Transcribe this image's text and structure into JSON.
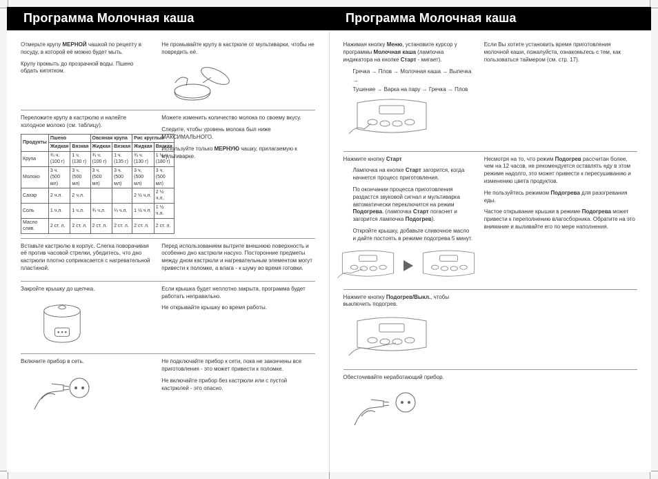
{
  "header": {
    "title_left": "Программа Молочная каша",
    "title_right": "Программа Молочная каша"
  },
  "left": {
    "r1": {
      "l1": "Отмерьте крупу",
      "l1b": "МЕРНОЙ",
      "l1c": "чашкой по рецепту в посуду, в которой её можно будет мыть.",
      "l2": "Крупу промыть до прозрачной воды. Пшено обдать кипятком.",
      "r1": "Не промывайте крупу в кастрюле от мультиварки, чтобы не повредить её."
    },
    "r2": {
      "l1": "Переложите крупу в кастрюлю и налейте холодное молоко (см. таблицу).",
      "r1": "Можете изменить количество молока по своему вкусу.",
      "r2": "Следите, чтобы уровень молока был ниже МАКСИМАЛЬНОГО.",
      "r3a": "Используйте только",
      "r3b": "МЕРНУЮ",
      "r3c": "чашку, прилагаемую к мультиварке."
    },
    "table": {
      "hdr_prod": "Продукты",
      "g1": "Пшено",
      "g2": "Овсяная крупа",
      "g3": "Рис круглый",
      "sub_a": "Жидкая",
      "sub_b": "Вязкая",
      "rows": [
        [
          "Крупа",
          "¾ ч. (100 г)",
          "1 ч. (130 г)",
          "¾ ч. (100 г)",
          "1 ч. (135 г)",
          "¾ ч. (130 г)",
          "1 ½ ч. (180 г)"
        ],
        [
          "Молоко",
          "3 ч. (500 мл)",
          "3 ч. (500 мл)",
          "3 ч. (500 мл)",
          "3 ч. (500 мл)",
          "3 ч. (500 мл)",
          "3 ч. (500 мл)"
        ],
        [
          "Сахар",
          "2 ч.л.",
          "2 ч.л.",
          "",
          "",
          "2 ½ ч.л.",
          "2 ½ ч.л."
        ],
        [
          "Соль",
          "1 ч.л.",
          "1 ч.л.",
          "¾ ч.л.",
          "¼ ч.л.",
          "1 ½ ч.л.",
          "1 ½ ч.л."
        ],
        [
          "Масло слив.",
          "2 ст. л.",
          "2 ст. л.",
          "2 ст. л.",
          "2 ст. л.",
          "2 ст. л.",
          "2 ст. л."
        ]
      ]
    },
    "r3": {
      "l1": "Вставьте кастрюлю в корпус. Слегка поворачивая её против часовой стрелки, убедитесь, что дно кастрюли плотно соприкасается с нагревательной пластиной.",
      "r1": "Перед использованием вытрите внешнюю поверхность и особенно дно кастрюли насухо. Посторонние предметы между дном кастрюли и нагревательным элементом могут привести к поломке, а влага - к шуму во время готовки."
    },
    "r4": {
      "l1": "Закройте крышку до щелчка.",
      "r1": "Если крышка будет неплотно закрыта, программа будет работать неправильно.",
      "r2": "Не открывайте крышку во время работы."
    },
    "r5": {
      "l1": "Включите прибор в сеть.",
      "r1": "Не подключайте прибор к сети, пока не закончены все приготовления - это может привести к поломке.",
      "r2": "Не включайте прибор без кастрюли или с пустой кастрюлей - это опасно."
    }
  },
  "right": {
    "r1": {
      "l1a": "Нажимая кнопку",
      "l1b": "Меню",
      "l1c": ", установите курсор у программы",
      "l1d": "Молочная каша",
      "l1e": "(лампочка индикатора на кнопке",
      "l1f": "Старт",
      "l1g": "- мигает).",
      "flow1": "Гречка → Плов → Молочная каша → Выпечка →",
      "flow2": "Тушение → Варка на пару → Гречка → Плов",
      "r1": "Если Вы хотите установить время приготовления молочной каши, пожалуйста, ознакомьтесь с тем, как пользоваться таймером (см. стр. 17)."
    },
    "r2": {
      "l1a": "Нажмите кнопку",
      "l1b": "Старт",
      "l2a": "Лампочка на кнопке",
      "l2b": "Старт",
      "l2c": "загорится, когда начнется процесс приготовления.",
      "l3a": "По окончании процесса приготовления раздастся звуковой сигнал и мультиварка автоматически переключится на режим",
      "l3b": "Подогрева",
      "l3c": "(лампочка",
      "l3d": "Старт",
      "l3e": "погаснет и загорится лампочка",
      "l3f": "Подогрев",
      "l3g": ").",
      "l4": "Откройте крышку, добавьте сливочное масло и дайте постоять в режиме подогрева 5 минут.",
      "r1a": "Несмотря на то, что режим",
      "r1b": "Подогрев",
      "r1c": "рассчитан более, чем на 12 часов, не рекомендуется оставлять еду в этом режиме надолго, это может привести к пересушиванию и изменению цвета продуктов.",
      "r2a": "Не пользуйтесь режимом",
      "r2b": "Подогрева",
      "r2c": "для разогревания еды.",
      "r3a": "Частое открывание крышки в режиме",
      "r3b": "Подогрева",
      "r3c": "может привести к переполнению влагосборника. Обратите на это внимание и выливайте его по мере наполнения."
    },
    "r3": {
      "l1a": "Нажмите кнопку",
      "l1b": "Подогрев/Выкл.",
      "l1c": ", чтобы выключить подогрев."
    },
    "r4": {
      "l1": "Обесточивайте неработающий прибор."
    }
  }
}
